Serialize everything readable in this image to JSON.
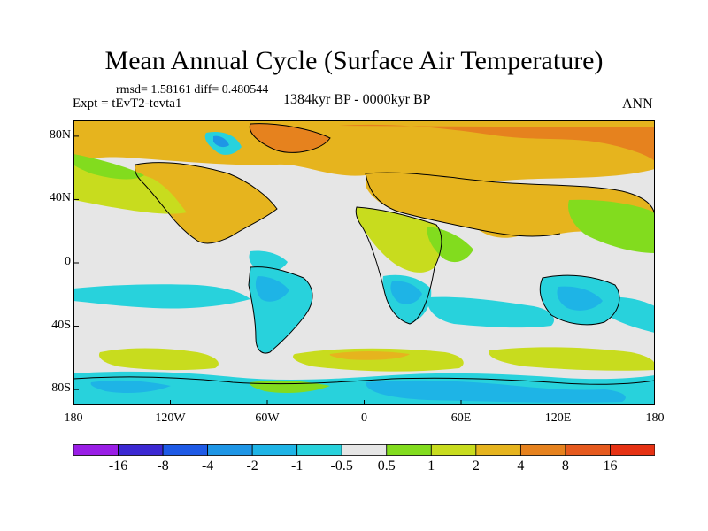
{
  "title": "Mean Annual Cycle (Surface Air Temperature)",
  "stats": "rmsd= 1.58161 diff= 0.480544",
  "experiment": "Expt = tEvT2-tevta1",
  "period": "1384kyr BP - 0000kyr BP",
  "season": "ANN",
  "map": {
    "lon_range": [
      -180,
      180
    ],
    "lat_range": [
      -90,
      90
    ],
    "x_ticks": [
      {
        "lon": -180,
        "label": "180"
      },
      {
        "lon": -120,
        "label": "120W"
      },
      {
        "lon": -60,
        "label": "60W"
      },
      {
        "lon": 0,
        "label": "0"
      },
      {
        "lon": 60,
        "label": "60E"
      },
      {
        "lon": 120,
        "label": "120E"
      },
      {
        "lon": 180,
        "label": "180"
      }
    ],
    "y_ticks": [
      {
        "lat": 80,
        "label": "80N"
      },
      {
        "lat": 40,
        "label": "40N"
      },
      {
        "lat": 0,
        "label": "0"
      },
      {
        "lat": -40,
        "label": "40S"
      },
      {
        "lat": -80,
        "label": "80S"
      }
    ],
    "background_color": "#e6e6e6"
  },
  "colorbar": {
    "labels": [
      "-16",
      "-8",
      "-4",
      "-2",
      "-1",
      "-0.5",
      "0.5",
      "1",
      "2",
      "4",
      "8",
      "16"
    ],
    "colors": [
      "#9a1ee6",
      "#3c28d2",
      "#1e5ae6",
      "#1e96e6",
      "#1eb4e6",
      "#28d2dc",
      "#e6e6e6",
      "#82dc1e",
      "#c8dc1e",
      "#e6b41e",
      "#e6821e",
      "#e65a1e",
      "#e63214"
    ]
  },
  "chart_data": {
    "type": "heatmap",
    "title": "Mean Annual Cycle (Surface Air Temperature)",
    "x_axis": "longitude",
    "y_axis": "latitude",
    "levels": [
      -16,
      -8,
      -4,
      -2,
      -1,
      -0.5,
      0.5,
      1,
      2,
      4,
      8,
      16
    ],
    "regions": [
      {
        "name": "arctic-north",
        "lon": [
          -180,
          180
        ],
        "lat": [
          62,
          90
        ],
        "level": "4 to 8"
      },
      {
        "name": "siberia-warm",
        "lon": [
          40,
          180
        ],
        "lat": [
          60,
          80
        ],
        "level": "8 to 16"
      },
      {
        "name": "north-america",
        "lon": [
          -140,
          -55
        ],
        "lat": [
          25,
          60
        ],
        "level": "2 to 4"
      },
      {
        "name": "eurasia",
        "lon": [
          10,
          150
        ],
        "lat": [
          30,
          60
        ],
        "level": "4 to 8"
      },
      {
        "name": "north-pacific-band",
        "lon": [
          -180,
          -120
        ],
        "lat": [
          20,
          45
        ],
        "level": "1 to 2"
      },
      {
        "name": "north-atlantic",
        "lon": [
          -50,
          -15
        ],
        "lat": [
          35,
          60
        ],
        "level": "-0.5 to 0.5"
      },
      {
        "name": "tropical-east-pacific",
        "lon": [
          -180,
          -100
        ],
        "lat": [
          -30,
          -5
        ],
        "level": "-1 to -0.5"
      },
      {
        "name": "south-america",
        "lon": [
          -80,
          -35
        ],
        "lat": [
          -45,
          5
        ],
        "level": "-2 to -1"
      },
      {
        "name": "southern-africa",
        "lon": [
          12,
          45
        ],
        "lat": [
          -35,
          -5
        ],
        "level": "-2 to -1"
      },
      {
        "name": "indian-ocean-south",
        "lon": [
          40,
          120
        ],
        "lat": [
          -45,
          -20
        ],
        "level": "-1 to -0.5"
      },
      {
        "name": "australia",
        "lon": [
          113,
          153
        ],
        "lat": [
          -40,
          -12
        ],
        "level": "-2 to -1"
      },
      {
        "name": "southern-ocean-band",
        "lon": [
          -180,
          180
        ],
        "lat": [
          -70,
          -50
        ],
        "level": "1 to 2"
      },
      {
        "name": "antarctica",
        "lon": [
          -180,
          180
        ],
        "lat": [
          -90,
          -70
        ],
        "level": "-2 to -1"
      }
    ]
  }
}
